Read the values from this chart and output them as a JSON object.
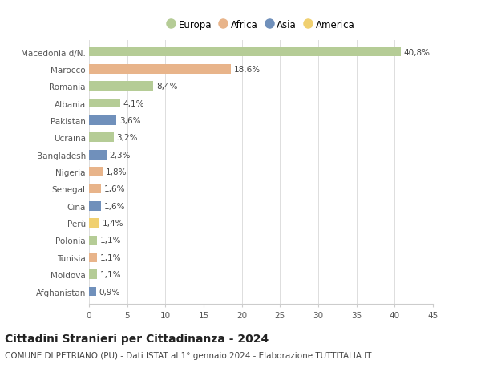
{
  "countries": [
    "Macedonia d/N.",
    "Marocco",
    "Romania",
    "Albania",
    "Pakistan",
    "Ucraina",
    "Bangladesh",
    "Nigeria",
    "Senegal",
    "Cina",
    "Perù",
    "Polonia",
    "Tunisia",
    "Moldova",
    "Afghanistan"
  ],
  "values": [
    40.8,
    18.6,
    8.4,
    4.1,
    3.6,
    3.2,
    2.3,
    1.8,
    1.6,
    1.6,
    1.4,
    1.1,
    1.1,
    1.1,
    0.9
  ],
  "labels": [
    "40,8%",
    "18,6%",
    "8,4%",
    "4,1%",
    "3,6%",
    "3,2%",
    "2,3%",
    "1,8%",
    "1,6%",
    "1,6%",
    "1,4%",
    "1,1%",
    "1,1%",
    "1,1%",
    "0,9%"
  ],
  "continents": [
    "Europa",
    "Africa",
    "Europa",
    "Europa",
    "Asia",
    "Europa",
    "Asia",
    "Africa",
    "Africa",
    "Asia",
    "America",
    "Europa",
    "Africa",
    "Europa",
    "Asia"
  ],
  "continent_colors": {
    "Europa": "#b5cc96",
    "Africa": "#e8b48a",
    "Asia": "#7090bb",
    "America": "#f0d070"
  },
  "legend_order": [
    "Europa",
    "Africa",
    "Asia",
    "America"
  ],
  "title": "Cittadini Stranieri per Cittadinanza - 2024",
  "subtitle": "COMUNE DI PETRIANO (PU) - Dati ISTAT al 1° gennaio 2024 - Elaborazione TUTTITALIA.IT",
  "xlim": [
    0,
    45
  ],
  "xticks": [
    0,
    5,
    10,
    15,
    20,
    25,
    30,
    35,
    40,
    45
  ],
  "grid_color": "#dddddd",
  "bg_color": "#ffffff",
  "bar_height": 0.55,
  "title_fontsize": 10,
  "subtitle_fontsize": 7.5,
  "label_fontsize": 7.5,
  "tick_fontsize": 7.5,
  "legend_fontsize": 8.5
}
